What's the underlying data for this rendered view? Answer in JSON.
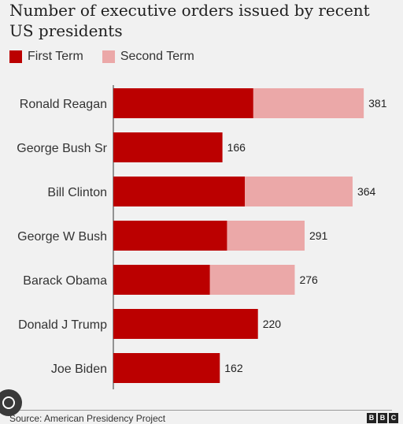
{
  "chart_data": {
    "type": "bar",
    "orientation": "horizontal",
    "stacked": true,
    "title": "Number of executive orders issued by recent US presidents",
    "categories": [
      "Ronald Reagan",
      "George Bush Sr",
      "Bill Clinton",
      "George W Bush",
      "Barack Obama",
      "Donald J Trump",
      "Joe Biden"
    ],
    "totals": [
      381,
      166,
      364,
      291,
      276,
      220,
      162
    ],
    "series": [
      {
        "name": "First Term",
        "color": "#bb0000",
        "values": [
          213,
          166,
          200,
          173,
          147,
          220,
          162
        ]
      },
      {
        "name": "Second Term",
        "color": "#eba8a8",
        "values": [
          168,
          0,
          164,
          118,
          129,
          0,
          0
        ]
      }
    ],
    "xlim": [
      0,
      400
    ],
    "legend_position": "top-left",
    "grid": false
  },
  "footer": {
    "source": "Source: American Presidency Project",
    "logo": [
      "B",
      "B",
      "C"
    ]
  }
}
